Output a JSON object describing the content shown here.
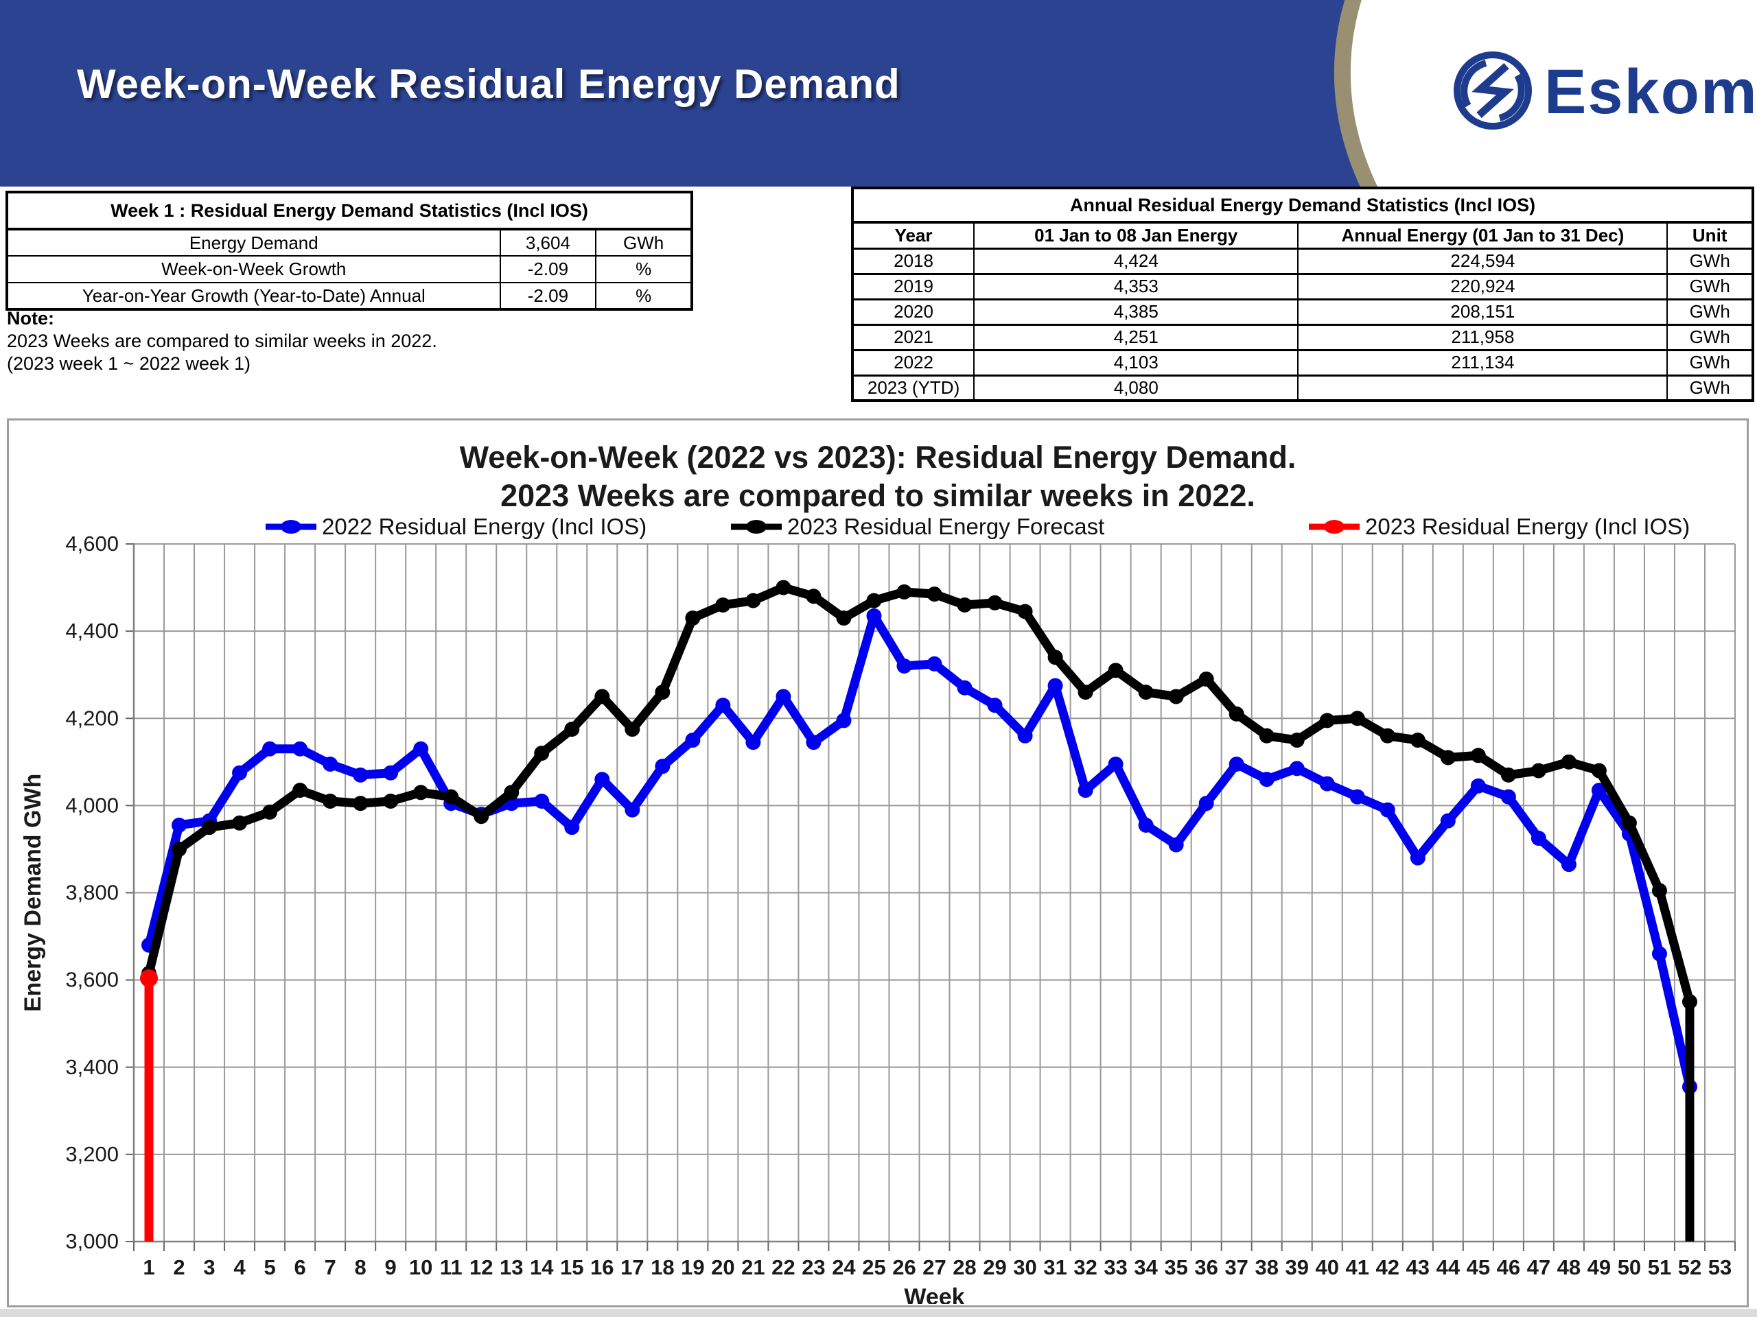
{
  "header": {
    "title": "Week-on-Week Residual Energy Demand",
    "logo_text": "Eskom",
    "colors": {
      "band_blue": "#2b4391",
      "logo_blue": "#1e3c8d",
      "arc_tan": "#998f73"
    }
  },
  "week_table": {
    "title": "Week 1 : Residual Energy Demand Statistics (Incl IOS)",
    "rows": [
      {
        "label": "Energy Demand",
        "value": "3,604",
        "unit": "GWh"
      },
      {
        "label": "Week-on-Week Growth",
        "value": "-2.09",
        "unit": "%"
      },
      {
        "label": "Year-on-Year Growth (Year-to-Date) Annual",
        "value": "-2.09",
        "unit": "%"
      }
    ]
  },
  "note": {
    "label": "Note:",
    "line1": "2023 Weeks are compared to similar weeks in 2022.",
    "line2": "(2023 week 1 ~ 2022 week 1)"
  },
  "annual_table": {
    "title": "Annual Residual Energy Demand Statistics (Incl IOS)",
    "columns": [
      "Year",
      "01 Jan to 08 Jan Energy",
      "Annual Energy (01 Jan to 31 Dec)",
      "Unit"
    ],
    "rows": [
      [
        "2018",
        "4,424",
        "224,594",
        "GWh"
      ],
      [
        "2019",
        "4,353",
        "220,924",
        "GWh"
      ],
      [
        "2020",
        "4,385",
        "208,151",
        "GWh"
      ],
      [
        "2021",
        "4,251",
        "211,958",
        "GWh"
      ],
      [
        "2022",
        "4,103",
        "211,134",
        "GWh"
      ],
      [
        "2023 (YTD)",
        "4,080",
        "",
        "GWh"
      ]
    ]
  },
  "chart": {
    "title_line1": "Week-on-Week (2022 vs 2023): Residual Energy Demand.",
    "title_line2": "2023 Weeks are compared to similar weeks in 2022.",
    "chart_data": {
      "type": "line",
      "xlabel": "Week",
      "ylabel": "Energy Demand GWh",
      "x_axis_max": 53,
      "ylim": [
        3000,
        4600
      ],
      "ytick_step": 200,
      "grid": true,
      "legend_position": "top",
      "series": [
        {
          "name": "2022 Residual Energy (Incl IOS)",
          "color": "#0000ee",
          "weeks_start": 1,
          "values": [
            3680,
            3955,
            3965,
            4075,
            4130,
            4130,
            4095,
            4070,
            4075,
            4130,
            4005,
            3980,
            4005,
            4010,
            3950,
            4060,
            3990,
            4090,
            4150,
            4230,
            4145,
            4250,
            4145,
            4195,
            4435,
            4320,
            4325,
            4270,
            4230,
            4160,
            4275,
            4035,
            4095,
            3955,
            3910,
            4005,
            4095,
            4060,
            4085,
            4050,
            4020,
            3990,
            3880,
            3965,
            4045,
            4020,
            3925,
            3865,
            4035,
            3935,
            3660,
            3355
          ],
          "drop_to_axis_at_end": false
        },
        {
          "name": "2023 Residual Energy Forecast",
          "color": "#000000",
          "weeks_start": 1,
          "values": [
            3615,
            3900,
            3950,
            3960,
            3985,
            4035,
            4010,
            4005,
            4010,
            4030,
            4020,
            3975,
            4030,
            4120,
            4175,
            4250,
            4175,
            4260,
            4430,
            4460,
            4470,
            4500,
            4480,
            4430,
            4470,
            4490,
            4485,
            4460,
            4465,
            4445,
            4340,
            4260,
            4310,
            4260,
            4250,
            4290,
            4210,
            4160,
            4150,
            4195,
            4200,
            4160,
            4150,
            4110,
            4115,
            4070,
            4080,
            4100,
            4080,
            3960,
            3805,
            3550
          ],
          "drop_to_axis_at_end": true
        },
        {
          "name": "2023 Residual Energy (Incl IOS)",
          "color": "#ff0000",
          "weeks_start": 1,
          "values": [
            3604
          ],
          "drop_to_axis_at_end": true
        }
      ]
    }
  }
}
